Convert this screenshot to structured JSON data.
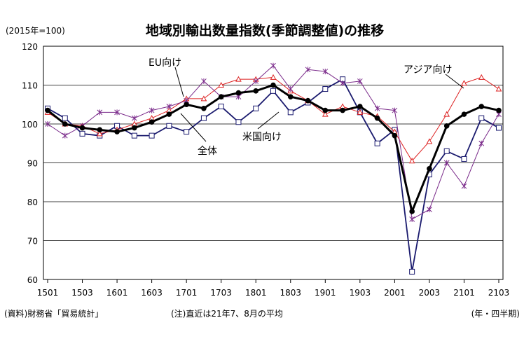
{
  "chart_data": {
    "type": "line",
    "title": "地域別輸出数量指数(季節調整値)の推移",
    "unit_note": "(2015年=100)",
    "x_tick_labels": [
      "1501",
      "1503",
      "1601",
      "1603",
      "1701",
      "1703",
      "1801",
      "1803",
      "1901",
      "1903",
      "2001",
      "2003",
      "2101",
      "2103"
    ],
    "x": [
      "1501",
      "1502",
      "1503",
      "1504",
      "1601",
      "1602",
      "1603",
      "1604",
      "1701",
      "1702",
      "1703",
      "1704",
      "1801",
      "1802",
      "1803",
      "1804",
      "1901",
      "1902",
      "1903",
      "1904",
      "2001",
      "2002",
      "2003",
      "2004",
      "2101",
      "2102",
      "2103"
    ],
    "ylim": [
      60,
      120
    ],
    "y_ticks": [
      60,
      70,
      80,
      90,
      100,
      110,
      120
    ],
    "grid": "horizontal",
    "series": [
      {
        "name": "米国向け",
        "color": "#1a1a6e",
        "marker": "square",
        "values": [
          104,
          101.5,
          97.5,
          97,
          99.5,
          97,
          97,
          99.5,
          98,
          101.5,
          104.5,
          100.5,
          104,
          108.5,
          103,
          105.5,
          109,
          111.5,
          103,
          95,
          98.5,
          62,
          87,
          93,
          91,
          101.5,
          99
        ]
      },
      {
        "name": "EU向け",
        "color": "#dd2222",
        "marker": "triangle",
        "values": [
          103,
          100,
          99.5,
          97.5,
          98.5,
          100,
          101.5,
          103.5,
          106.5,
          106.5,
          110,
          111.5,
          111.5,
          112,
          108.5,
          106,
          102.5,
          104.5,
          103,
          102,
          98,
          90.5,
          95.5,
          102.5,
          110.5,
          112,
          109
        ]
      },
      {
        "name": "アジア向け",
        "color": "#7a2a8a",
        "marker": "star",
        "values": [
          100,
          97,
          99.5,
          103,
          103,
          101.5,
          103.5,
          104.5,
          106,
          111,
          107,
          107,
          111,
          115,
          109,
          114,
          113.5,
          110.5,
          111,
          104,
          103.5,
          75.5,
          78,
          90,
          84,
          95,
          102.5
        ]
      },
      {
        "name": "全体",
        "color": "#000000",
        "marker": "circle",
        "values": [
          103.5,
          100,
          99,
          98.5,
          98,
          99,
          100.5,
          102.5,
          105,
          104,
          107,
          108,
          108.5,
          110,
          107,
          106,
          103.5,
          103.5,
          104.5,
          101.5,
          97,
          77.5,
          88.5,
          99.5,
          102.5,
          104.5,
          103.5
        ]
      }
    ],
    "annotations": [
      {
        "text": "EU向け",
        "series": "EU向け"
      },
      {
        "text": "アジア向け",
        "series": "アジア向け"
      },
      {
        "text": "米国向け",
        "series": "米国向け"
      },
      {
        "text": "全体",
        "series": "全体"
      }
    ]
  },
  "footer": {
    "source": "(資料)財務省「貿易統計」",
    "note": "(注)直近は21年7、8月の平均",
    "x_unit": "(年・四半期)"
  }
}
